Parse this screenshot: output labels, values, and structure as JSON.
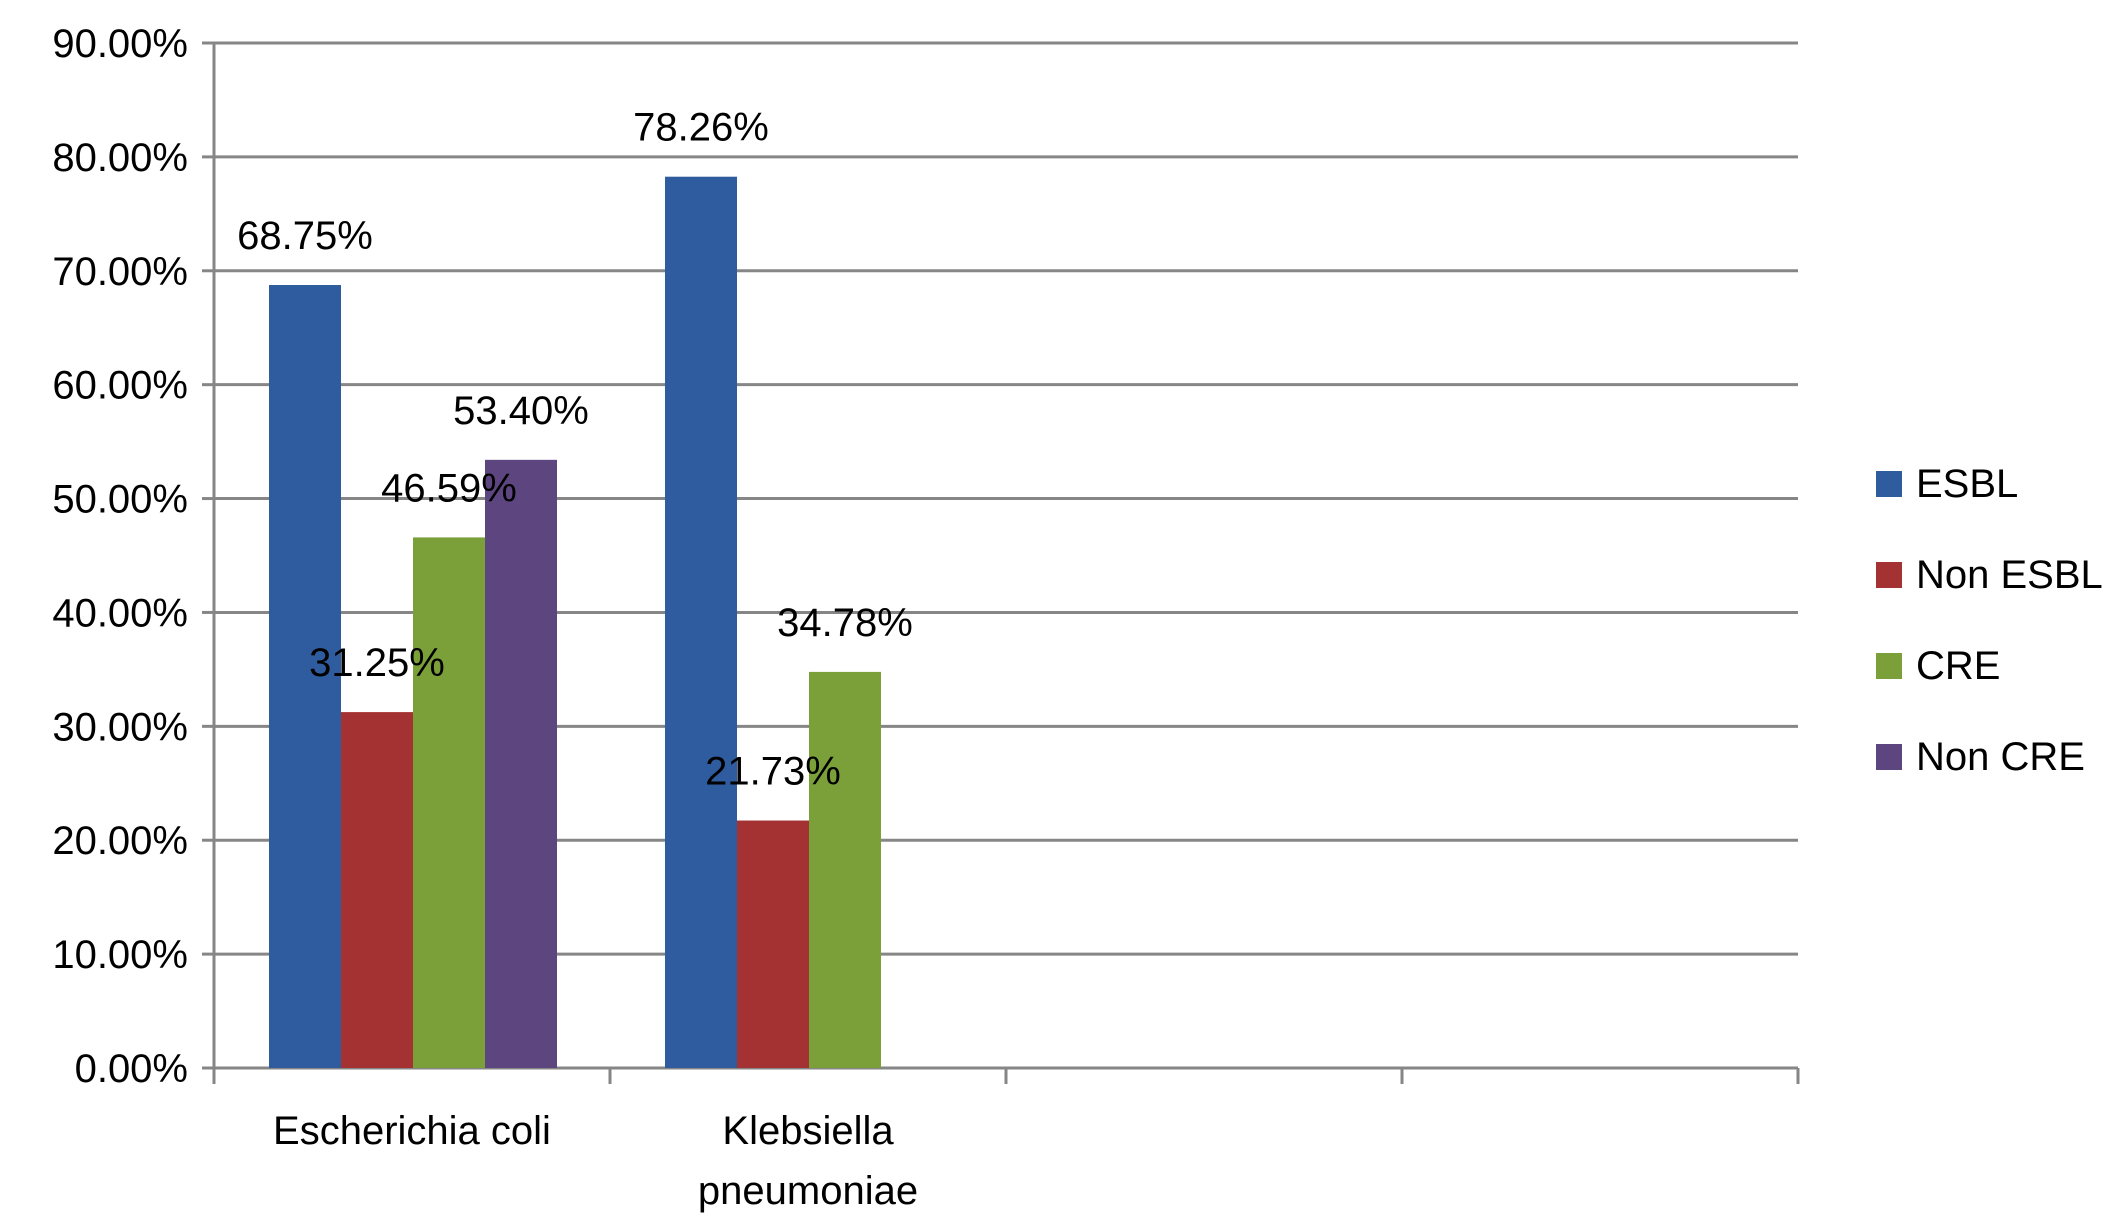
{
  "chart_data": {
    "type": "bar",
    "title": "",
    "xlabel": "",
    "ylabel": "",
    "categories": [
      "Escherichia coli",
      "Klebsiella pneumoniae",
      "",
      ""
    ],
    "category_lines": [
      [
        "Escherichia coli"
      ],
      [
        "Klebsiella",
        "pneumoniae"
      ],
      [],
      []
    ],
    "series": [
      {
        "name": "ESBL",
        "color": "#2F5C9E",
        "values": [
          68.75,
          78.26,
          null,
          null
        ],
        "labels": [
          "68.75%",
          "78.26%",
          "",
          ""
        ]
      },
      {
        "name": "Non ESBL",
        "color": "#A53232",
        "values": [
          31.25,
          21.73,
          null,
          null
        ],
        "labels": [
          "31.25%",
          "21.73%",
          "",
          ""
        ]
      },
      {
        "name": "CRE",
        "color": "#7BA03A",
        "values": [
          46.59,
          34.78,
          null,
          null
        ],
        "labels": [
          "46.59%",
          "34.78%",
          "",
          ""
        ]
      },
      {
        "name": "Non CRE",
        "color": "#5D457F",
        "values": [
          53.4,
          null,
          null,
          null
        ],
        "labels": [
          "53.40%",
          "",
          "",
          ""
        ]
      }
    ],
    "ylim": [
      0,
      90
    ],
    "yticks": [
      "0.00%",
      "10.00%",
      "20.00%",
      "30.00%",
      "40.00%",
      "50.00%",
      "60.00%",
      "70.00%",
      "80.00%",
      "90.00%"
    ],
    "grid": true,
    "legend_position": "right"
  }
}
